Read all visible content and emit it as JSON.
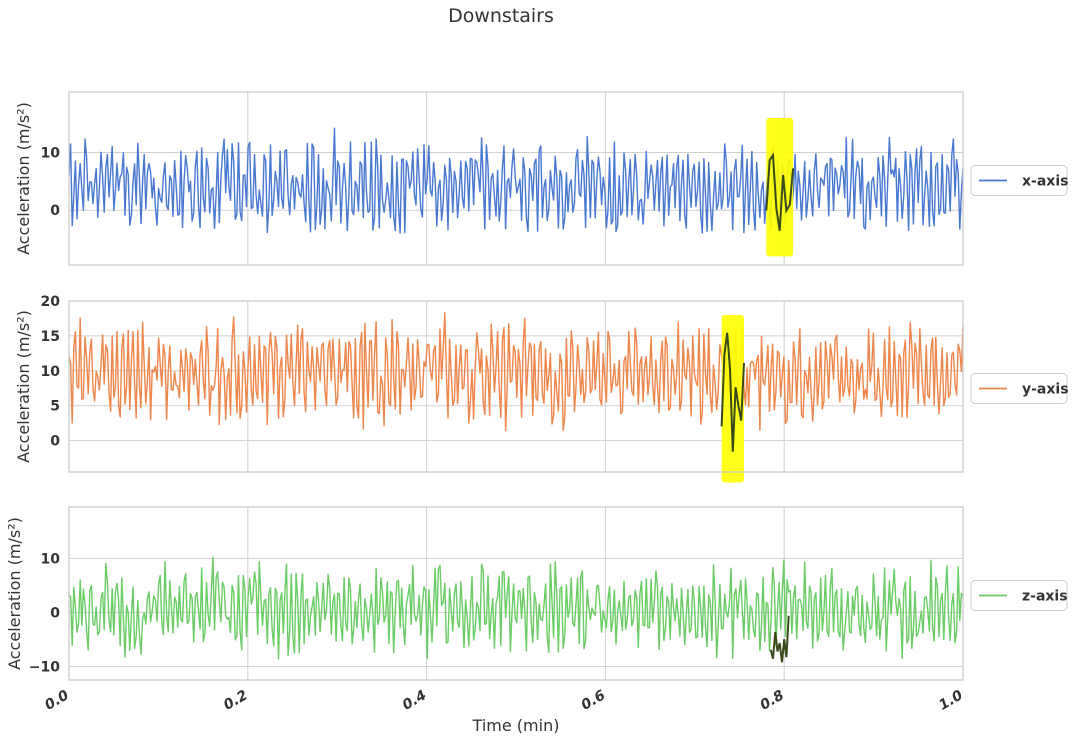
{
  "chart_data": {
    "type": "line",
    "title": "Downstairs",
    "xlabel": "Time (min)",
    "xlim": [
      0.0,
      1.0
    ],
    "xticks": [
      "0.0",
      "0.2",
      "0.4",
      "0.6",
      "0.8",
      "1.0"
    ],
    "grid": true,
    "legend_position": "right",
    "highlight_color": "#ffff00",
    "panels": [
      {
        "name": "x-axis",
        "color": "#4878d0",
        "ylabel": "Acceleration (m/s²)",
        "ylim": [
          -9.5,
          20.5
        ],
        "yticks": [
          "0",
          "10"
        ],
        "ytick_values": [
          0,
          10
        ],
        "range": [
          -4,
          19
        ],
        "baseline": 4,
        "swing": 9,
        "seed": 11,
        "highlight": {
          "x": [
            0.78,
            0.81
          ],
          "y": [
            -8,
            16
          ]
        }
      },
      {
        "name": "y-axis",
        "color": "#ee854a",
        "ylabel": "Acceleration (m/s²)",
        "ylim": [
          -4.5,
          20
        ],
        "yticks": [
          "0",
          "5",
          "10",
          "15",
          "20"
        ],
        "ytick_values": [
          0,
          5,
          10,
          15,
          20
        ],
        "range": [
          -3,
          19
        ],
        "baseline": 9.5,
        "swing": 8,
        "seed": 23,
        "highlight": {
          "x": [
            0.73,
            0.755
          ],
          "y": [
            -6,
            18
          ]
        }
      },
      {
        "name": "z-axis",
        "color": "#6acc64",
        "ylabel": "Acceleration (m/s²)",
        "ylim": [
          -12.5,
          19.5
        ],
        "yticks": [
          "−10",
          "0",
          "10"
        ],
        "ytick_values": [
          -10,
          0,
          10
        ],
        "range": [
          -11,
          18
        ],
        "baseline": 0.5,
        "swing": 9,
        "seed": 37,
        "highlight": {
          "x": [
            0.785,
            0.805
          ],
          "y": [
            -11.5,
            2
          ]
        }
      }
    ],
    "n_points": 560
  }
}
